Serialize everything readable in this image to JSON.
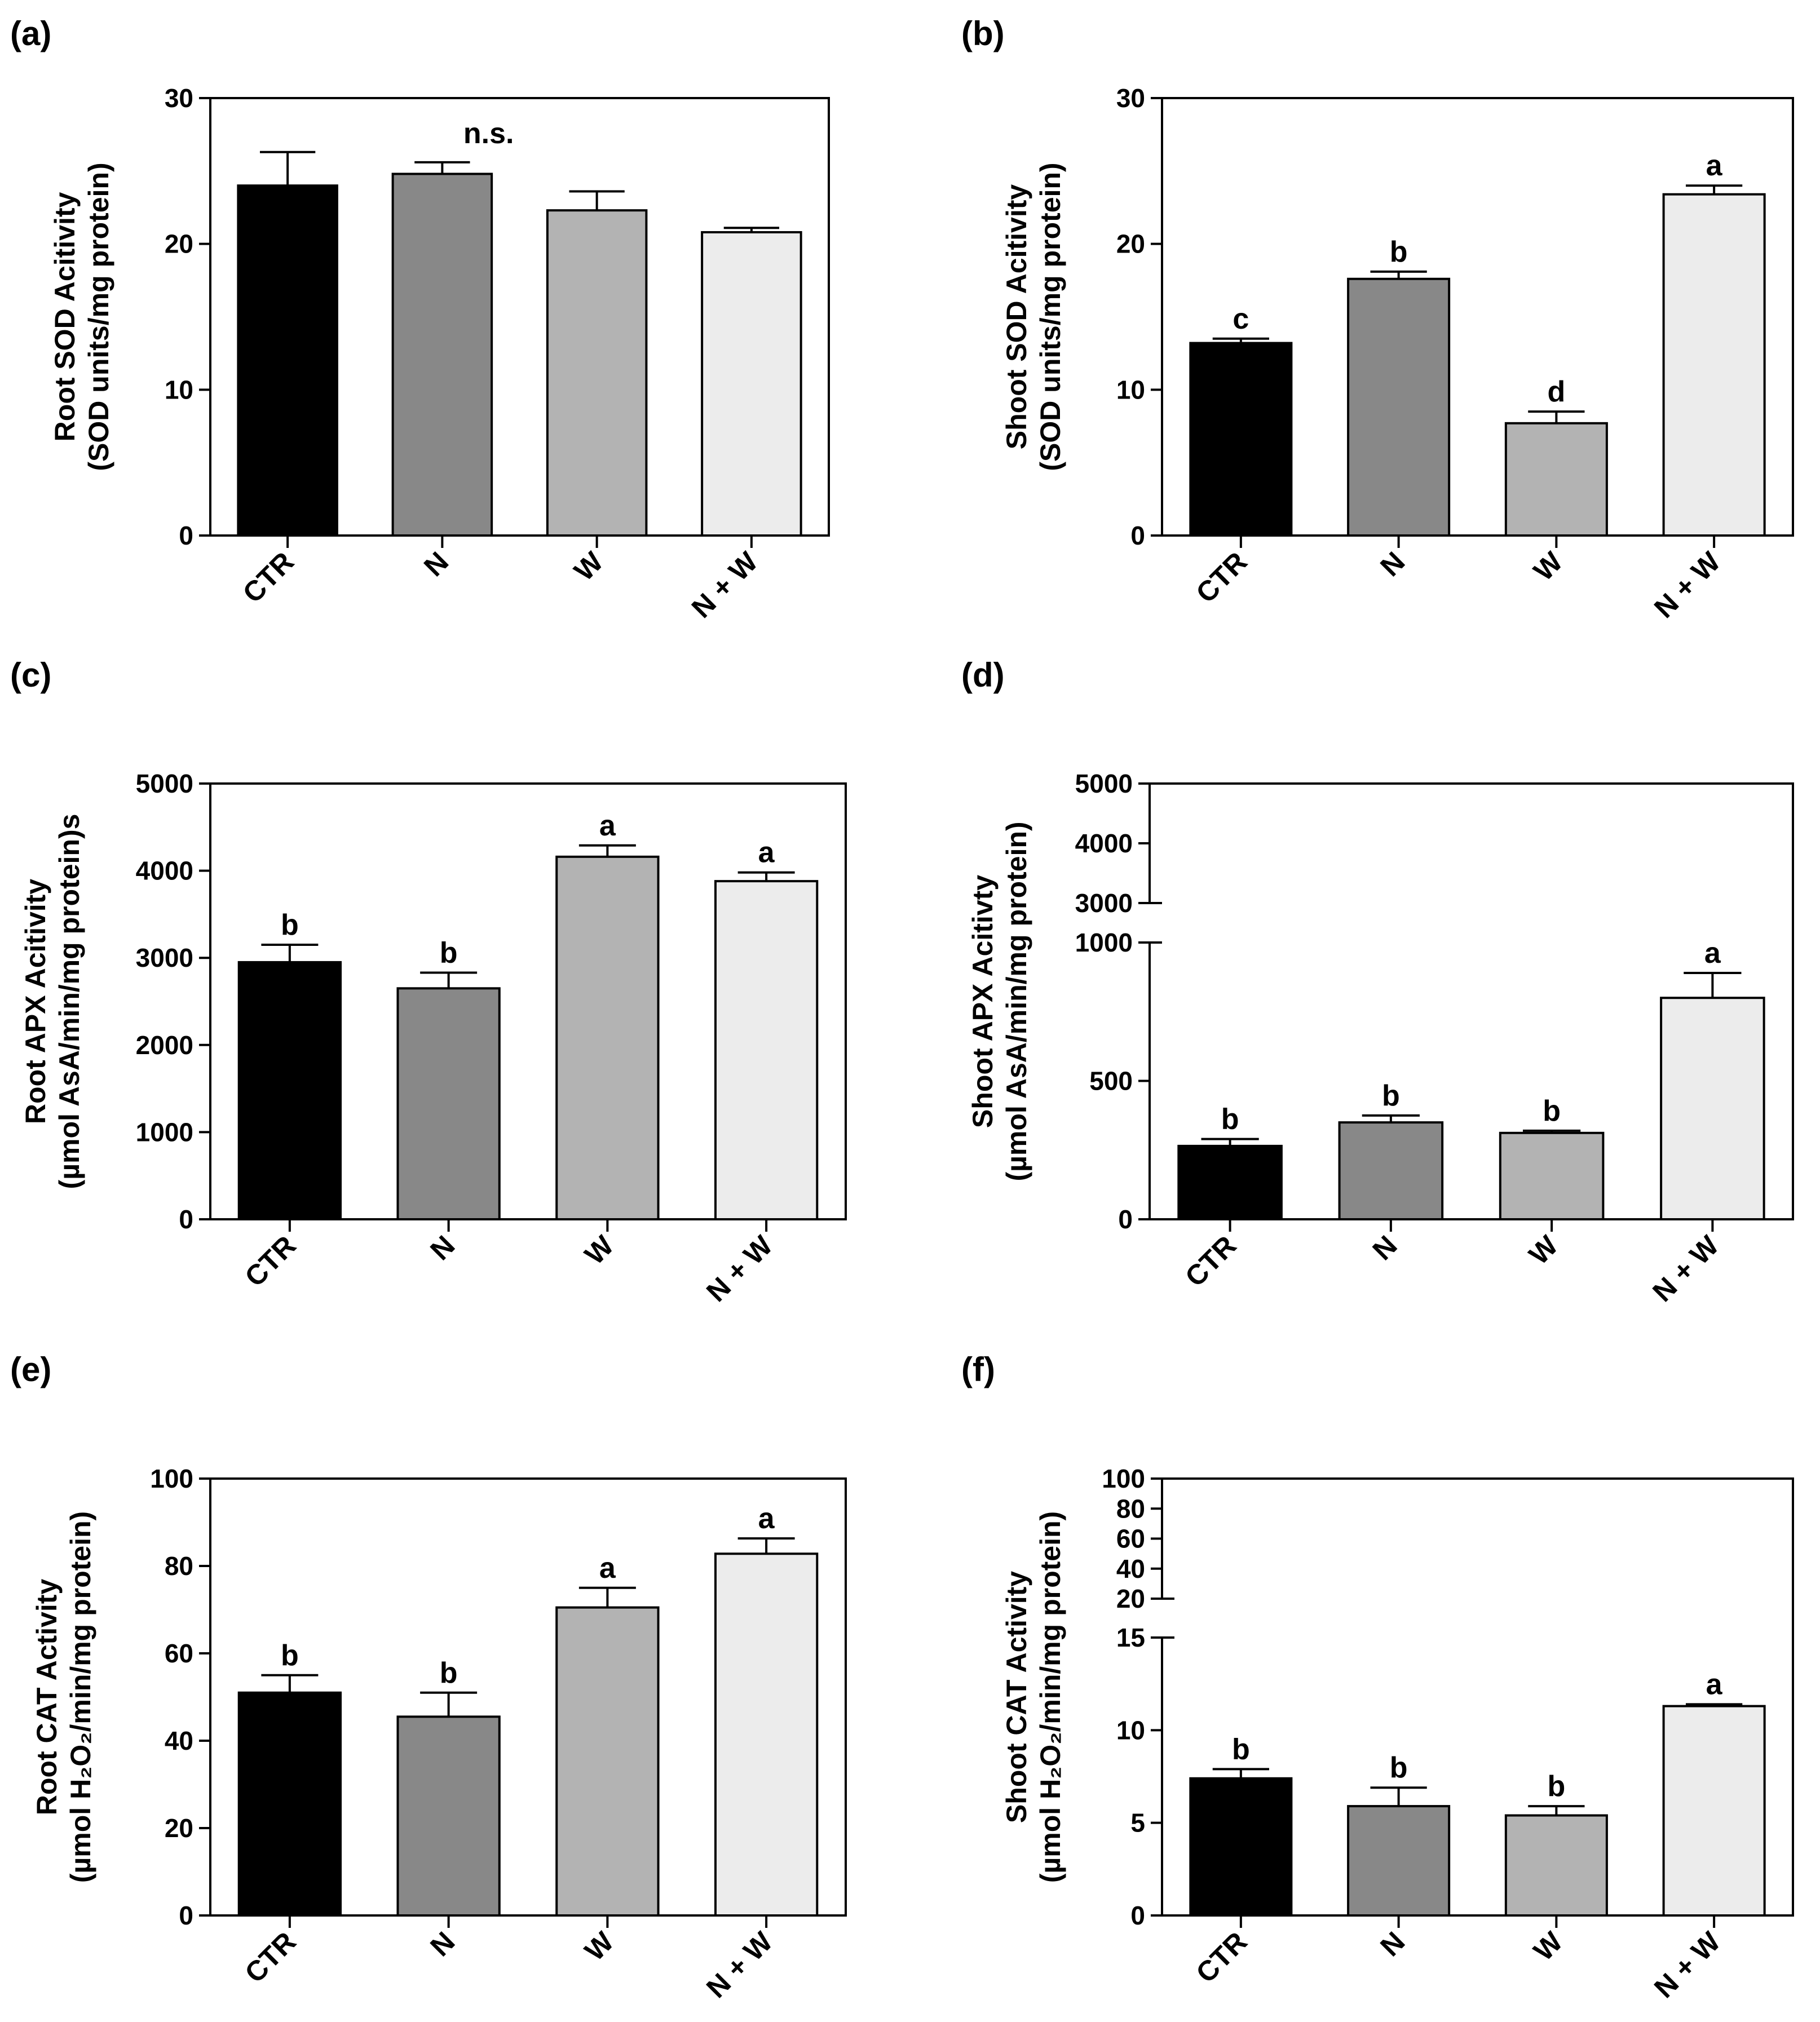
{
  "chart_data": [
    {
      "type": "bar",
      "panel": "(a)",
      "categories": [
        "CTR",
        "N",
        "W",
        "N + W"
      ],
      "values": [
        24.0,
        24.8,
        22.3,
        20.8
      ],
      "errors": [
        2.3,
        0.8,
        1.3,
        0.3
      ],
      "significance": [
        "",
        "",
        "",
        ""
      ],
      "annotation": "n.s.",
      "ylabel": [
        "Root SOD Acitivity",
        "(SOD units/mg protein)"
      ],
      "ylim": [
        0,
        30
      ],
      "yticks": [
        0,
        10,
        20,
        30
      ],
      "colors": [
        "#000000",
        "#888888",
        "#b3b3b3",
        "#ececec"
      ]
    },
    {
      "type": "bar",
      "panel": "(b)",
      "categories": [
        "CTR",
        "N",
        "W",
        "N + W"
      ],
      "values": [
        13.2,
        17.6,
        7.7,
        23.4
      ],
      "errors": [
        0.3,
        0.5,
        0.8,
        0.6
      ],
      "significance": [
        "c",
        "b",
        "d",
        "a"
      ],
      "ylabel": [
        "Shoot SOD Acitivity",
        "(SOD units/mg protein)"
      ],
      "ylim": [
        0,
        30
      ],
      "yticks": [
        0,
        10,
        20,
        30
      ],
      "colors": [
        "#000000",
        "#888888",
        "#b3b3b3",
        "#ececec"
      ]
    },
    {
      "type": "bar",
      "panel": "(c)",
      "categories": [
        "CTR",
        "N",
        "W",
        "N + W"
      ],
      "values": [
        2950,
        2650,
        4160,
        3880
      ],
      "errors": [
        200,
        180,
        130,
        100
      ],
      "significance": [
        "b",
        "b",
        "a",
        "a"
      ],
      "ylabel": [
        "Root APX Acitivity",
        "(µmol AsA/min/mg protein)s"
      ],
      "ylim": [
        0,
        5000
      ],
      "yticks": [
        0,
        1000,
        2000,
        3000,
        4000,
        5000
      ],
      "colors": [
        "#000000",
        "#888888",
        "#b3b3b3",
        "#ececec"
      ]
    },
    {
      "type": "bar",
      "panel": "(d)",
      "categories": [
        "CTR",
        "N",
        "W",
        "N + W"
      ],
      "values": [
        265,
        350,
        312,
        800
      ],
      "errors": [
        25,
        25,
        8,
        90
      ],
      "significance": [
        "b",
        "b",
        "b",
        "a"
      ],
      "ylabel": [
        "Shoot APX Acitivty",
        "(µmol AsA/min/mg protein)"
      ],
      "broken_axis": {
        "lower": [
          0,
          1000
        ],
        "upper": [
          3000,
          5000
        ]
      },
      "yticks_lower": [
        0,
        500,
        1000
      ],
      "yticks_upper": [
        3000,
        4000,
        5000
      ],
      "colors": [
        "#000000",
        "#888888",
        "#b3b3b3",
        "#ececec"
      ]
    },
    {
      "type": "bar",
      "panel": "(e)",
      "categories": [
        "CTR",
        "N",
        "W",
        "N + W"
      ],
      "values": [
        51,
        45.5,
        70.5,
        82.8
      ],
      "errors": [
        4,
        5.5,
        4.5,
        3.5
      ],
      "significance": [
        "b",
        "b",
        "a",
        "a"
      ],
      "ylabel": [
        "Root CAT Activity",
        "(µmol H₂O₂/min/mg protein)"
      ],
      "ylim": [
        0,
        100
      ],
      "yticks": [
        0,
        20,
        40,
        60,
        80,
        100
      ],
      "colors": [
        "#000000",
        "#888888",
        "#b3b3b3",
        "#ececec"
      ]
    },
    {
      "type": "bar",
      "panel": "(f)",
      "categories": [
        "CTR",
        "N",
        "W",
        "N + W"
      ],
      "values": [
        7.4,
        5.9,
        5.4,
        11.3
      ],
      "errors": [
        0.5,
        1.0,
        0.5,
        0.1
      ],
      "significance": [
        "b",
        "b",
        "b",
        "a"
      ],
      "ylabel": [
        "Shoot CAT Activity",
        "(µmol H₂O₂/min/mg protein)"
      ],
      "broken_axis": {
        "lower": [
          0,
          15
        ],
        "upper": [
          20,
          100
        ]
      },
      "yticks_lower": [
        0,
        5,
        10,
        15
      ],
      "yticks_upper": [
        20,
        40,
        60,
        80,
        100
      ],
      "colors": [
        "#000000",
        "#888888",
        "#b3b3b3",
        "#ececec"
      ]
    }
  ]
}
